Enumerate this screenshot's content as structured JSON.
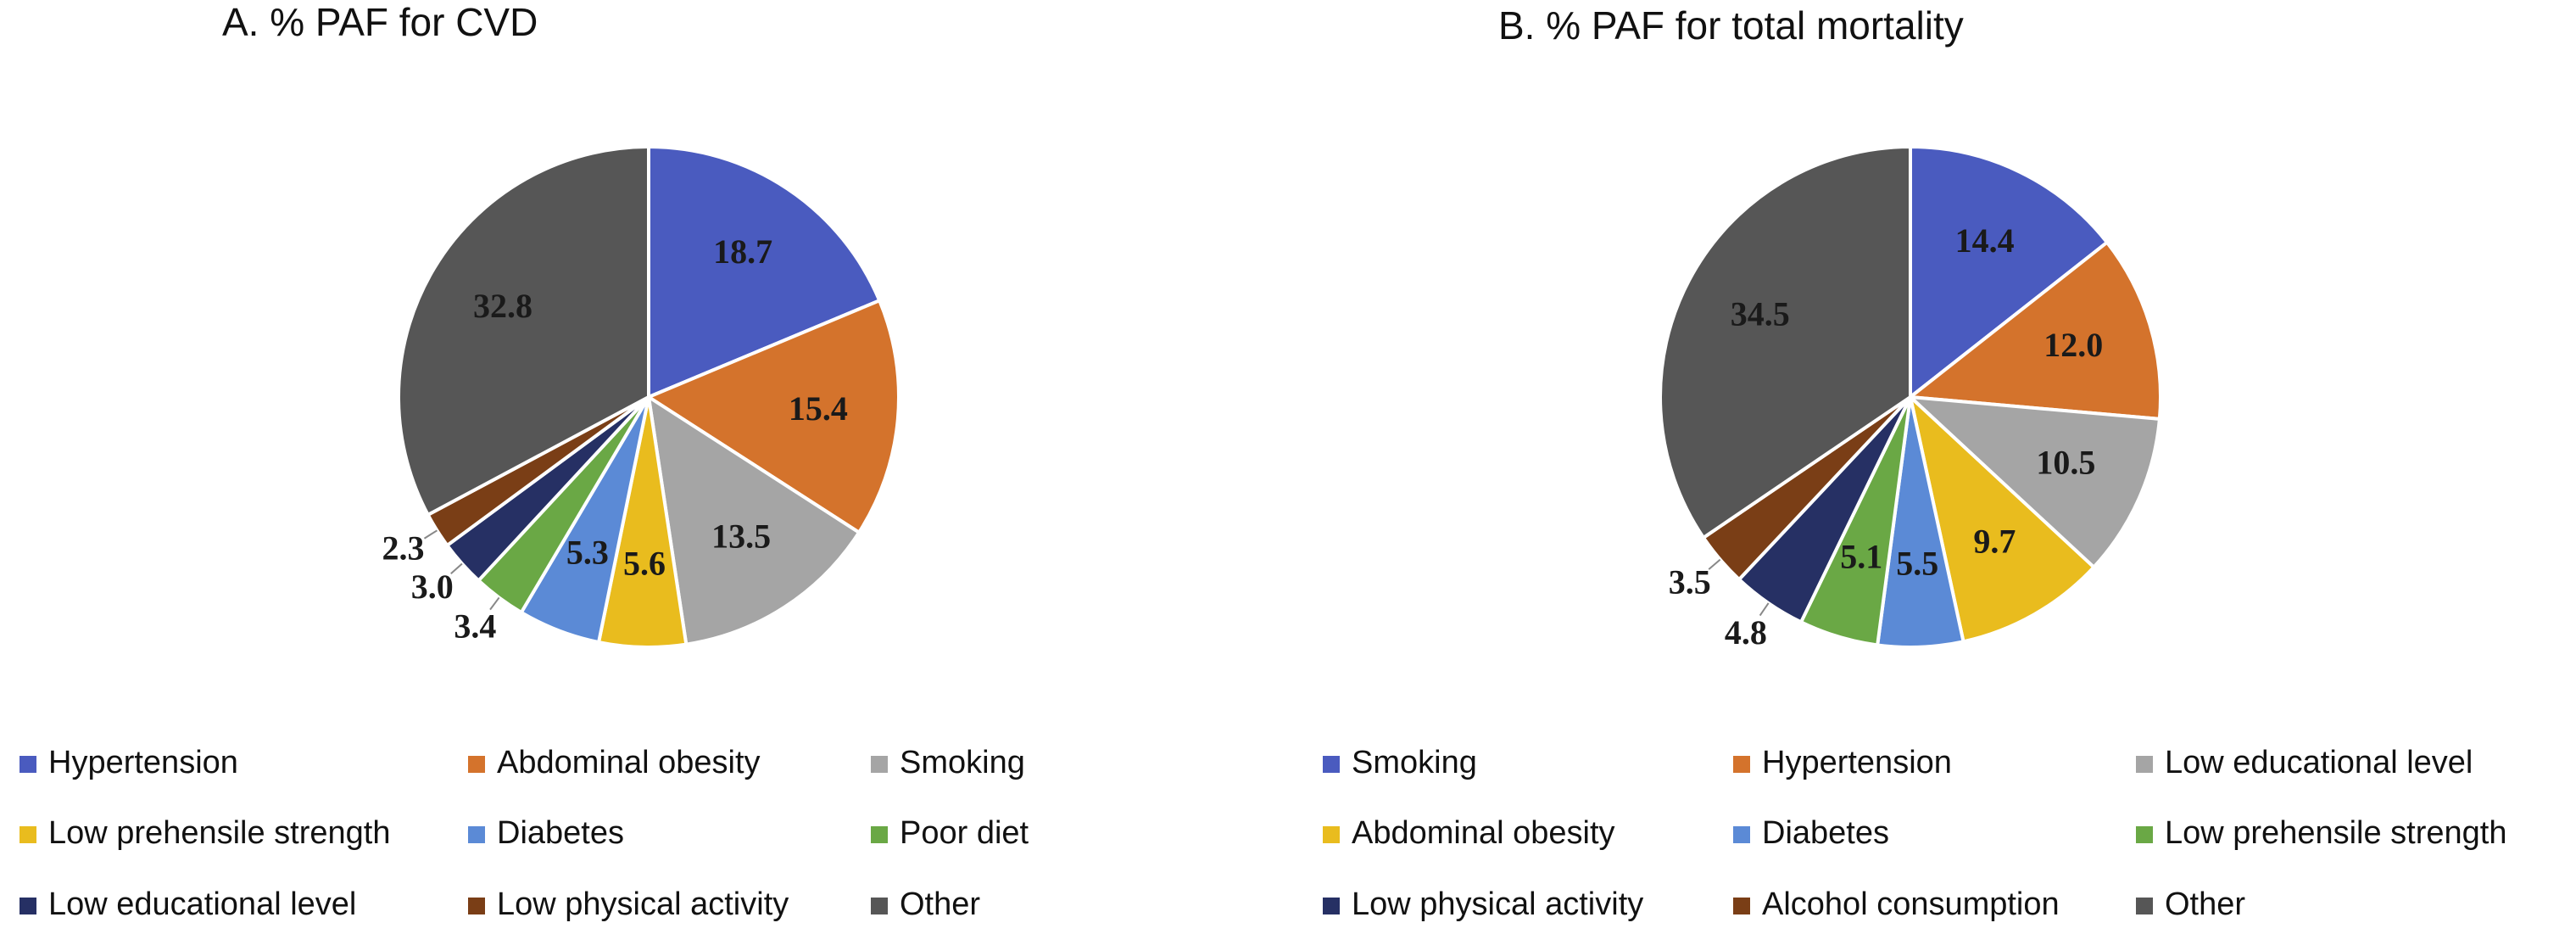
{
  "chart_data": [
    {
      "type": "pie",
      "title": "A.   % PAF for CVD",
      "categories": [
        "Hypertension",
        "Abdominal obesity",
        "Smoking",
        "Low prehensile strength",
        "Diabetes",
        "Poor diet",
        "Low educational level",
        "Low physical activity",
        "Other"
      ],
      "values": [
        18.7,
        15.4,
        13.5,
        5.6,
        5.3,
        3.4,
        3.0,
        2.3,
        32.8
      ],
      "value_labels": [
        "18.7",
        "15.4",
        "13.5",
        "5.6",
        "5.3",
        "3.4",
        "3.0",
        "2.3",
        "32.8"
      ],
      "colors": [
        "#4a5bbf",
        "#d4732c",
        "#a5a5a5",
        "#e9bc1e",
        "#5b8ad6",
        "#6aa845",
        "#263064",
        "#7a3e16",
        "#565656"
      ]
    },
    {
      "type": "pie",
      "title": "B.   % PAF for total mortality",
      "categories": [
        "Smoking",
        "Hypertension",
        "Low educational level",
        "Abdominal obesity",
        "Diabetes",
        "Low prehensile strength",
        "Low physical activity",
        "Alcohol consumption",
        "Other"
      ],
      "values": [
        14.4,
        12.0,
        10.5,
        9.7,
        5.5,
        5.1,
        4.8,
        3.5,
        34.5
      ],
      "value_labels": [
        "14.4",
        "12.0",
        "10.5",
        "9.7",
        "5.5",
        "5.1",
        "4.8",
        "3.5",
        "34.5"
      ],
      "colors": [
        "#4a5bbf",
        "#d4732c",
        "#a5a5a5",
        "#e9bc1e",
        "#5b8ad6",
        "#6aa845",
        "#263064",
        "#7a3e16",
        "#565656"
      ]
    }
  ]
}
